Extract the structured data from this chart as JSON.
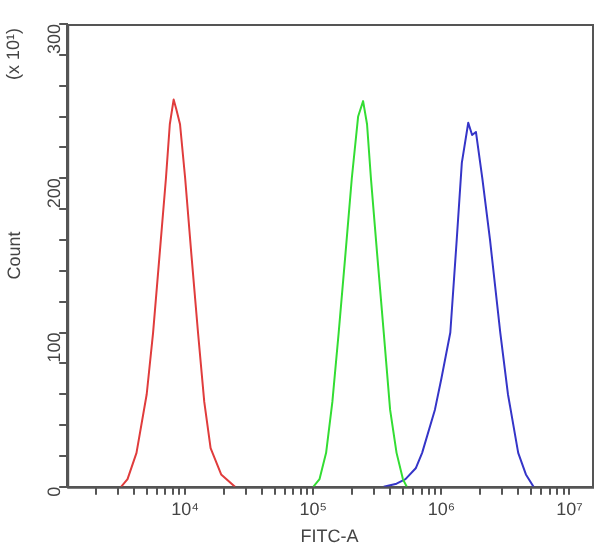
{
  "chart_data": {
    "type": "line",
    "xlabel": "FITC-A",
    "ylabel": "Count",
    "annotations": [
      "(x 10¹)"
    ],
    "log": "x",
    "grid": false,
    "legend": false,
    "marker": "none",
    "line_style": "solid",
    "xlim": [
      1200,
      15000000
    ],
    "ylim": [
      0,
      300
    ],
    "xticks": [
      {
        "value": 2000,
        "label": null
      },
      {
        "value": 3000,
        "label": null
      },
      {
        "value": 4000,
        "label": null
      },
      {
        "value": 5000,
        "label": null
      },
      {
        "value": 6000,
        "label": null
      },
      {
        "value": 7000,
        "label": null
      },
      {
        "value": 8000,
        "label": null
      },
      {
        "value": 9000,
        "label": null
      },
      {
        "value": 10000,
        "label": "10⁴"
      },
      {
        "value": 20000,
        "label": null
      },
      {
        "value": 30000,
        "label": null
      },
      {
        "value": 40000,
        "label": null
      },
      {
        "value": 50000,
        "label": null
      },
      {
        "value": 60000,
        "label": null
      },
      {
        "value": 70000,
        "label": null
      },
      {
        "value": 80000,
        "label": null
      },
      {
        "value": 90000,
        "label": null
      },
      {
        "value": 100000,
        "label": "10⁵"
      },
      {
        "value": 200000,
        "label": null
      },
      {
        "value": 300000,
        "label": null
      },
      {
        "value": 400000,
        "label": null
      },
      {
        "value": 500000,
        "label": null
      },
      {
        "value": 600000,
        "label": null
      },
      {
        "value": 700000,
        "label": null
      },
      {
        "value": 800000,
        "label": null
      },
      {
        "value": 900000,
        "label": null
      },
      {
        "value": 1000000,
        "label": "10⁶"
      },
      {
        "value": 2000000,
        "label": null
      },
      {
        "value": 3000000,
        "label": null
      },
      {
        "value": 4000000,
        "label": null
      },
      {
        "value": 5000000,
        "label": null
      },
      {
        "value": 6000000,
        "label": null
      },
      {
        "value": 7000000,
        "label": null
      },
      {
        "value": 8000000,
        "label": null
      },
      {
        "value": 9000000,
        "label": null
      },
      {
        "value": 10000000,
        "label": "10⁷"
      }
    ],
    "yticks": [
      0,
      {
        "value": 20,
        "label": null
      },
      {
        "value": 40,
        "label": null
      },
      {
        "value": 60,
        "label": null
      },
      {
        "value": 80,
        "label": null
      },
      100,
      {
        "value": 120,
        "label": null
      },
      {
        "value": 140,
        "label": null
      },
      {
        "value": 160,
        "label": null
      },
      {
        "value": 180,
        "label": null
      },
      200,
      {
        "value": 220,
        "label": null
      },
      {
        "value": 240,
        "label": null
      },
      {
        "value": 260,
        "label": null
      },
      {
        "value": 280,
        "label": null
      },
      300
    ],
    "series": [
      {
        "color": "#e03c3c",
        "x": [
          3160,
          3550,
          4170,
          5010,
          5620,
          6310,
          7080,
          7590,
          8130,
          8510,
          9120,
          10000,
          11200,
          12600,
          14100,
          15800,
          19100,
          24500
        ],
        "values": [
          0,
          5,
          22,
          60,
          100,
          150,
          200,
          235,
          251,
          245,
          235,
          200,
          150,
          100,
          55,
          25,
          8,
          0
        ]
      },
      {
        "color": "#33dd33",
        "x": [
          100000,
          112000,
          126000,
          141000,
          158000,
          178000,
          200000,
          224000,
          245000,
          263000,
          282000,
          316000,
          355000,
          398000,
          447000,
          501000,
          537000
        ],
        "values": [
          0,
          5,
          22,
          55,
          100,
          150,
          200,
          240,
          250,
          235,
          200,
          150,
          100,
          50,
          22,
          5,
          0
        ]
      },
      {
        "color": "#3535c8",
        "x": [
          355000,
          447000,
          525000,
          631000,
          708000,
          891000,
          1000000,
          1175000,
          1318000,
          1445000,
          1622000,
          1738000,
          1862000,
          2089000,
          2399000,
          2884000,
          3311000,
          3981000,
          4571000,
          5248000
        ],
        "values": [
          0,
          2,
          5,
          12,
          22,
          50,
          70,
          100,
          160,
          210,
          236,
          228,
          230,
          200,
          160,
          100,
          60,
          22,
          8,
          0
        ]
      }
    ]
  }
}
